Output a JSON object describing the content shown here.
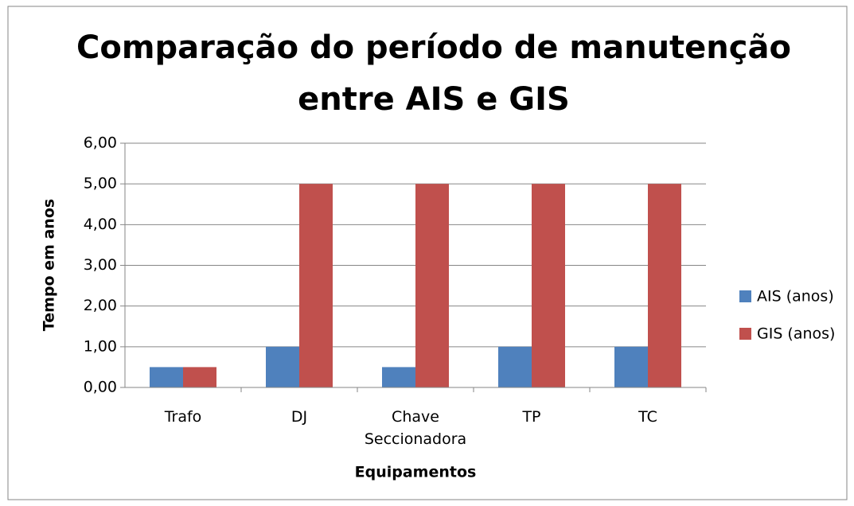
{
  "chart_data": {
    "type": "bar",
    "title": [
      "Comparação do período de manutenção",
      "entre AIS e GIS"
    ],
    "y_label": "Tempo em anos",
    "x_label": "Equipamentos",
    "categories": [
      "Trafo",
      "DJ",
      "Chave Seccionadora",
      "TP",
      "TC"
    ],
    "series": [
      {
        "name": "AIS (anos)",
        "color": "#4f81bd",
        "values": [
          0.5,
          1,
          0.5,
          1,
          1
        ]
      },
      {
        "name": "GIS (anos)",
        "color": "#c0504d",
        "values": [
          0.5,
          5,
          5,
          5,
          5
        ]
      }
    ],
    "ylim": [
      0,
      6
    ],
    "yticks": [
      {
        "value": 0,
        "label": "0,00"
      },
      {
        "value": 1,
        "label": "1,00"
      },
      {
        "value": 2,
        "label": "2,00"
      },
      {
        "value": 3,
        "label": "3,00"
      },
      {
        "value": 4,
        "label": "4,00"
      },
      {
        "value": 5,
        "label": "5,00"
      },
      {
        "value": 6,
        "label": "6,00"
      }
    ],
    "grid": true,
    "legend": "right"
  }
}
